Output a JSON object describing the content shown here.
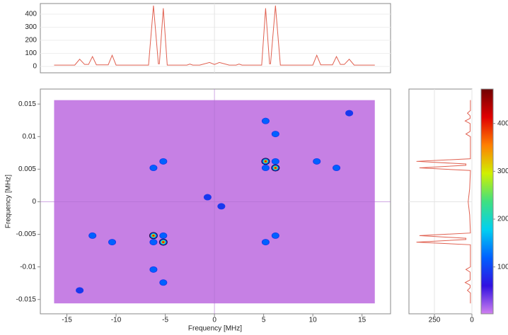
{
  "chart_data": [
    {
      "type": "line",
      "color": "#e06050",
      "grid": true,
      "x": [
        -16.3,
        -14.2,
        -13.7,
        -13.2,
        -12.8,
        -12.4,
        -12.0,
        -10.8,
        -10.4,
        -10.0,
        -6.7,
        -6.2,
        -5.7,
        -5.6,
        -5.2,
        -4.8,
        -2.8,
        -2.5,
        -2.2,
        -1.5,
        -0.5,
        0,
        0.5,
        1.5,
        2.2,
        2.5,
        2.8,
        4.8,
        5.2,
        5.6,
        5.7,
        6.2,
        6.7,
        10.0,
        10.4,
        10.8,
        12.0,
        12.4,
        12.8,
        13.2,
        13.7,
        14.2,
        16.3
      ],
      "values": [
        10,
        10,
        55,
        15,
        15,
        75,
        12,
        12,
        85,
        10,
        10,
        465,
        20,
        20,
        445,
        10,
        10,
        18,
        10,
        10,
        30,
        15,
        30,
        10,
        10,
        18,
        10,
        10,
        445,
        20,
        20,
        465,
        10,
        10,
        85,
        12,
        12,
        75,
        15,
        15,
        55,
        10,
        10
      ],
      "xlim": [
        -17.7,
        17.9
      ],
      "ylim": [
        -49,
        481
      ],
      "yticks": [
        0,
        100,
        200,
        300,
        400
      ]
    },
    {
      "type": "heatmap",
      "grid": true,
      "xlabel": "Frequency [MHz]",
      "ylabel": "Frequency [MHz]",
      "extent": [
        -16.3,
        16.3,
        -0.0156,
        0.0156
      ],
      "xlim": [
        -17.7,
        17.9
      ],
      "ylim": [
        -0.0172,
        0.0173
      ],
      "xticks": [
        -15,
        -10,
        -5,
        0,
        5,
        10,
        15
      ],
      "yticks": [
        0.015,
        0.01,
        0.005,
        0,
        -0.005,
        -0.01,
        -0.015
      ],
      "peaks": [
        {
          "x": -6.2,
          "y": -0.0052,
          "value": 465
        },
        {
          "x": -5.2,
          "y": -0.0052,
          "value": 150
        },
        {
          "x": -6.2,
          "y": -0.0062,
          "value": 150
        },
        {
          "x": -5.2,
          "y": -0.0062,
          "value": 445
        },
        {
          "x": 5.2,
          "y": 0.0062,
          "value": 445
        },
        {
          "x": 6.2,
          "y": 0.0062,
          "value": 150
        },
        {
          "x": 5.2,
          "y": 0.0052,
          "value": 150
        },
        {
          "x": 6.2,
          "y": 0.0052,
          "value": 465
        },
        {
          "x": -5.2,
          "y": 0.0062,
          "value": 90
        },
        {
          "x": -6.2,
          "y": 0.0052,
          "value": 90
        },
        {
          "x": 5.2,
          "y": 0.0124,
          "value": 90
        },
        {
          "x": 6.2,
          "y": 0.0104,
          "value": 90
        },
        {
          "x": 10.4,
          "y": 0.0062,
          "value": 90
        },
        {
          "x": 12.4,
          "y": 0.0052,
          "value": 90
        },
        {
          "x": 13.7,
          "y": 0.0136,
          "value": 70
        },
        {
          "x": -12.4,
          "y": -0.0052,
          "value": 90
        },
        {
          "x": -10.4,
          "y": -0.0062,
          "value": 90
        },
        {
          "x": -6.2,
          "y": -0.0104,
          "value": 90
        },
        {
          "x": -5.2,
          "y": -0.0124,
          "value": 90
        },
        {
          "x": -13.7,
          "y": -0.0136,
          "value": 70
        },
        {
          "x": 6.2,
          "y": -0.0052,
          "value": 90
        },
        {
          "x": 5.2,
          "y": -0.0062,
          "value": 90
        },
        {
          "x": -0.7,
          "y": 0.0007,
          "value": 40
        },
        {
          "x": 0.7,
          "y": -0.0007,
          "value": 40
        }
      ]
    },
    {
      "type": "line",
      "orientation": "vertical",
      "color": "#e06050",
      "grid": true,
      "y": [
        0.0156,
        0.014,
        0.0136,
        0.0132,
        0.0128,
        0.0124,
        0.012,
        0.0108,
        0.0104,
        0.01,
        0.0066,
        0.0062,
        0.0058,
        0.0056,
        0.0052,
        0.0048,
        0.002,
        0,
        -0.002,
        -0.0048,
        -0.0052,
        -0.0056,
        -0.0058,
        -0.0062,
        -0.0066,
        -0.01,
        -0.0104,
        -0.0108,
        -0.012,
        -0.0124,
        -0.0128,
        -0.0132,
        -0.0136,
        -0.014,
        -0.0156
      ],
      "values": [
        10,
        10,
        30,
        12,
        12,
        45,
        12,
        12,
        40,
        10,
        10,
        370,
        40,
        40,
        350,
        10,
        15,
        25,
        15,
        10,
        350,
        40,
        40,
        370,
        10,
        10,
        40,
        12,
        12,
        45,
        12,
        12,
        30,
        10,
        10
      ],
      "xlim": [
        420,
        0
      ],
      "xticks": [
        250,
        0
      ],
      "ylim": [
        -0.0172,
        0.0173
      ]
    },
    {
      "type": "colorbar",
      "lim": [
        2,
        472
      ],
      "ticks": [
        100,
        200,
        300,
        400
      ],
      "colors": [
        "#d080f0",
        "#3010e0",
        "#0060ff",
        "#00d0f0",
        "#40e080",
        "#d0f000",
        "#ff8000",
        "#e00000",
        "#700000"
      ]
    }
  ]
}
